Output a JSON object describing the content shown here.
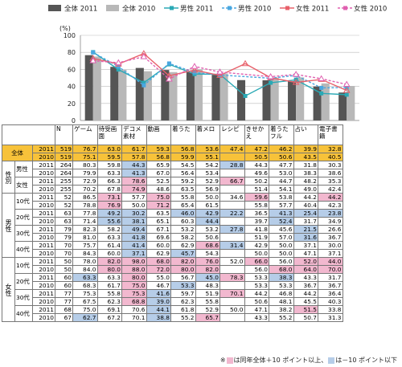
{
  "chart_data": {
    "type": "bar+line",
    "unit_label": "(%)",
    "ylim": [
      0,
      100
    ],
    "yticks": [
      0,
      20,
      40,
      60,
      80,
      100
    ],
    "categories": [
      "ゲーム",
      "待受画面",
      "デコメ素材",
      "動画",
      "着うた",
      "着メロ",
      "レシピ",
      "きせかえ",
      "着うたフル",
      "占い",
      "電子書籍"
    ],
    "series": [
      {
        "name": "全体 2011",
        "type": "bar",
        "color": "#555555",
        "values": [
          76.7,
          63.0,
          61.7,
          59.3,
          56.8,
          53.6,
          47.4,
          47.2,
          46.2,
          39.9,
          32.8
        ]
      },
      {
        "name": "全体 2010",
        "type": "bar",
        "color": "#b8b8b8",
        "values": [
          75.1,
          59.5,
          57.8,
          56.8,
          59.9,
          55.1,
          0,
          50.5,
          50.6,
          43.5,
          40.5
        ]
      },
      {
        "name": "男性 2011",
        "type": "line",
        "color": "#2aa9b5",
        "dash": "",
        "values": [
          80.3,
          59.8,
          44.3,
          65.9,
          54.5,
          54.2,
          28.8,
          44.3,
          47.7,
          31.8,
          30.3
        ]
      },
      {
        "name": "男性 2010",
        "type": "line",
        "color": "#4aa7e0",
        "dash": "3,2",
        "values": [
          79.9,
          63.3,
          41.3,
          67.0,
          56.4,
          53.4,
          0,
          49.6,
          53.0,
          38.3,
          38.6
        ]
      },
      {
        "name": "女性 2011",
        "type": "line",
        "color": "#e8606a",
        "dash": "",
        "values": [
          72.9,
          66.3,
          78.6,
          52.5,
          59.2,
          52.9,
          66.7,
          50.2,
          44.7,
          48.2,
          35.3
        ]
      },
      {
        "name": "女性 2010",
        "type": "line",
        "color": "#e060b0",
        "dash": "3,2",
        "values": [
          70.2,
          67.8,
          74.9,
          48.6,
          63.5,
          56.9,
          0,
          51.4,
          54.1,
          49.0,
          42.4
        ]
      }
    ]
  },
  "table": {
    "n_header": "N",
    "headers": [
      "ゲーム",
      "待受画面",
      "デコメ素材",
      "動画",
      "着うた",
      "着メロ",
      "レシピ",
      "きせかえ",
      "着うたフル",
      "占い",
      "電子書籍"
    ],
    "rows": [
      {
        "group": "",
        "sub": "全体",
        "year": "2011",
        "n": "519",
        "cells": [
          "76.7",
          "63.0",
          "61.7",
          "59.3",
          "56.8",
          "53.6",
          "47.4",
          "47.2",
          "46.2",
          "39.9",
          "32.8"
        ],
        "marks": "...........",
        "total": true
      },
      {
        "group": "",
        "sub": "",
        "year": "2010",
        "n": "519",
        "cells": [
          "75.1",
          "59.5",
          "57.8",
          "56.8",
          "59.9",
          "55.1",
          "",
          "50.5",
          "50.6",
          "43.5",
          "40.5"
        ],
        "marks": "...........",
        "total": true
      },
      {
        "group": "性別",
        "sub": "男性",
        "year": "2011",
        "n": "264",
        "cells": [
          "80.3",
          "59.8",
          "44.3",
          "65.9",
          "54.5",
          "54.2",
          "28.8",
          "44.3",
          "47.7",
          "31.8",
          "30.3"
        ],
        "marks": "..L...L...."
      },
      {
        "group": "",
        "sub": "",
        "year": "2010",
        "n": "264",
        "cells": [
          "79.9",
          "63.3",
          "41.3",
          "67.0",
          "56.4",
          "53.4",
          "",
          "49.6",
          "53.0",
          "38.3",
          "38.6"
        ],
        "marks": "..L........"
      },
      {
        "group": "",
        "sub": "女性",
        "year": "2011",
        "n": "255",
        "cells": [
          "72.9",
          "66.3",
          "78.6",
          "52.5",
          "59.2",
          "52.9",
          "66.7",
          "50.2",
          "44.7",
          "48.2",
          "35.3"
        ],
        "marks": "..H...H...."
      },
      {
        "group": "",
        "sub": "",
        "year": "2010",
        "n": "255",
        "cells": [
          "70.2",
          "67.8",
          "74.9",
          "48.6",
          "63.5",
          "56.9",
          "",
          "51.4",
          "54.1",
          "49.0",
          "42.4"
        ],
        "marks": "..H........"
      },
      {
        "group": "男性",
        "sub": "10代",
        "year": "2011",
        "n": "52",
        "cells": [
          "86.5",
          "73.1",
          "57.7",
          "75.0",
          "55.8",
          "50.0",
          "34.6",
          "59.6",
          "53.8",
          "44.2",
          "44.2"
        ],
        "marks": ".H.H...H..H"
      },
      {
        "group": "",
        "sub": "",
        "year": "2010",
        "n": "52",
        "cells": [
          "78.8",
          "76.9",
          "50.0",
          "71.2",
          "65.4",
          "61.5",
          "",
          "55.8",
          "57.7",
          "40.4",
          "42.3"
        ],
        "marks": ".H.H......."
      },
      {
        "group": "",
        "sub": "20代",
        "year": "2011",
        "n": "63",
        "cells": [
          "77.8",
          "49.2",
          "30.2",
          "63.5",
          "46.0",
          "42.9",
          "22.2",
          "36.5",
          "41.3",
          "25.4",
          "23.8"
        ],
        "marks": ".LL.LLL.LLL"
      },
      {
        "group": "",
        "sub": "",
        "year": "2010",
        "n": "63",
        "cells": [
          "71.4",
          "55.6",
          "38.1",
          "65.1",
          "60.3",
          "44.4",
          "",
          "39.7",
          "52.4",
          "31.7",
          "34.9"
        ],
        "marks": ".LL..LL.L.."
      },
      {
        "group": "",
        "sub": "30代",
        "year": "2011",
        "n": "79",
        "cells": [
          "82.3",
          "58.2",
          "49.4",
          "67.1",
          "53.2",
          "53.2",
          "27.8",
          "41.8",
          "45.6",
          "21.5",
          "26.6"
        ],
        "marks": "..L...L..L."
      },
      {
        "group": "",
        "sub": "",
        "year": "2010",
        "n": "79",
        "cells": [
          "81.0",
          "63.3",
          "41.8",
          "69.6",
          "58.2",
          "50.6",
          "",
          "51.9",
          "57.0",
          "31.6",
          "36.7"
        ],
        "marks": "..L......L."
      },
      {
        "group": "",
        "sub": "40代",
        "year": "2011",
        "n": "70",
        "cells": [
          "75.7",
          "61.4",
          "41.4",
          "60.0",
          "62.9",
          "68.6",
          "31.4",
          "42.9",
          "50.0",
          "37.1",
          "30.0"
        ],
        "marks": "..L..HL...."
      },
      {
        "group": "",
        "sub": "",
        "year": "2010",
        "n": "70",
        "cells": [
          "84.3",
          "60.0",
          "37.1",
          "62.9",
          "45.7",
          "54.3",
          "",
          "50.0",
          "50.0",
          "47.1",
          "37.1"
        ],
        "marks": "..L.L......"
      },
      {
        "group": "女性",
        "sub": "10代",
        "year": "2011",
        "n": "50",
        "cells": [
          "78.0",
          "82.0",
          "98.0",
          "68.0",
          "82.0",
          "76.0",
          "52.0",
          "66.0",
          "56.0",
          "52.0",
          "44.0"
        ],
        "marks": ".HHHHH.H.HH"
      },
      {
        "group": "",
        "sub": "",
        "year": "2010",
        "n": "50",
        "cells": [
          "84.0",
          "80.0",
          "88.0",
          "72.0",
          "80.0",
          "82.0",
          "",
          "56.0",
          "68.0",
          "64.0",
          "70.0"
        ],
        "marks": ".HHHHH..HHH"
      },
      {
        "group": "",
        "sub": "20代",
        "year": "2011",
        "n": "60",
        "cells": [
          "63.3",
          "63.3",
          "80.0",
          "55.0",
          "56.7",
          "45.0",
          "78.3",
          "53.3",
          "38.3",
          "43.3",
          "31.7"
        ],
        "marks": "L.H..LH.L.."
      },
      {
        "group": "",
        "sub": "",
        "year": "2010",
        "n": "60",
        "cells": [
          "68.3",
          "61.7",
          "75.0",
          "46.7",
          "53.3",
          "48.3",
          "",
          "53.3",
          "53.3",
          "36.7",
          "36.7"
        ],
        "marks": "..H.L......"
      },
      {
        "group": "",
        "sub": "30代",
        "year": "2011",
        "n": "77",
        "cells": [
          "75.3",
          "55.8",
          "75.3",
          "41.6",
          "59.7",
          "51.9",
          "70.1",
          "44.2",
          "46.8",
          "44.2",
          "36.4"
        ],
        "marks": "..HL..H...."
      },
      {
        "group": "",
        "sub": "",
        "year": "2010",
        "n": "77",
        "cells": [
          "67.5",
          "62.3",
          "68.8",
          "39.0",
          "62.3",
          "55.8",
          "",
          "50.6",
          "48.1",
          "45.5",
          "40.3"
        ],
        "marks": "..HL......."
      },
      {
        "group": "",
        "sub": "40代",
        "year": "2011",
        "n": "68",
        "cells": [
          "75.0",
          "69.1",
          "70.6",
          "44.1",
          "61.8",
          "52.9",
          "50.0",
          "47.1",
          "38.2",
          "51.5",
          "33.8"
        ],
        "marks": "...L.....H."
      },
      {
        "group": "",
        "sub": "",
        "year": "2010",
        "n": "67",
        "cells": [
          "62.7",
          "67.2",
          "70.1",
          "38.8",
          "55.2",
          "65.7",
          "",
          "43.3",
          "55.2",
          "50.7",
          "31.3"
        ],
        "marks": "L..L.H....."
      }
    ]
  },
  "note": {
    "prefix": "※",
    "hi_text": "は同年全体＋10 ポイント以上、",
    "lo_text": "は－10 ポイント以下"
  }
}
